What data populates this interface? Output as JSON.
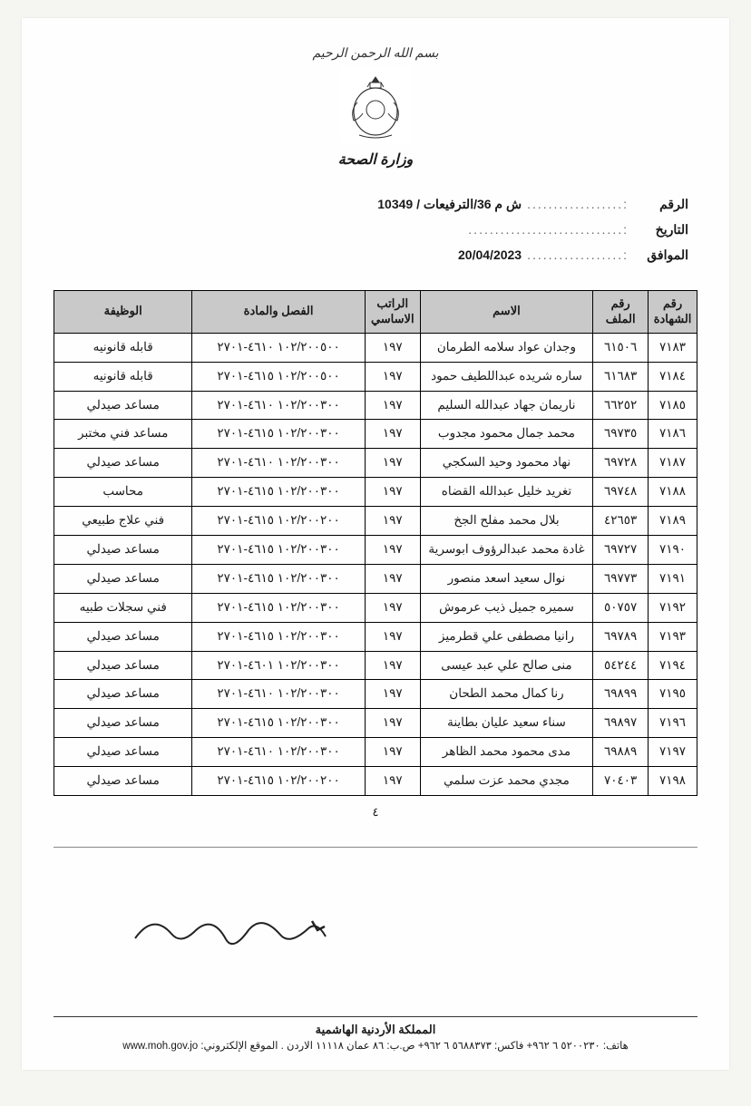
{
  "header": {
    "bismillah": "بسم الله الرحمن الرحيم",
    "ministry": "وزارة الصحة"
  },
  "meta": {
    "ref_label": "الرقم",
    "ref_value": "ش م 36/الترفيعات / 10349",
    "date_label": "التاريخ",
    "date_value": "",
    "corresponding_label": "الموافق",
    "corresponding_value": "20/04/2023"
  },
  "table": {
    "headers": {
      "cert_no": "رقم الشهادة",
      "file_no": "رقم الملف",
      "name": "الاسم",
      "base_salary": "الراتب الاساسي",
      "chapter_item": "الفصل والمادة",
      "job": "الوظيفة"
    },
    "rows": [
      {
        "cert": "٧١٨٣",
        "file": "٦١٥٠٦",
        "name": "وجدان عواد سلامه الطرمان",
        "sal": "١٩٧",
        "chap": "١٠٢/٢٠٠٥٠٠ ٤٦١٠-٢٧٠١",
        "job": "قابله قانونيه"
      },
      {
        "cert": "٧١٨٤",
        "file": "٦١٦٨٣",
        "name": "ساره شريده عبداللطيف حمود",
        "sal": "١٩٧",
        "chap": "١٠٢/٢٠٠٥٠٠ ٤٦١٥-٢٧٠١",
        "job": "قابله قانونيه"
      },
      {
        "cert": "٧١٨٥",
        "file": "٦٦٢٥٢",
        "name": "ناريمان جهاد عبدالله السليم",
        "sal": "١٩٧",
        "chap": "١٠٢/٢٠٠٣٠٠ ٤٦١٠-٢٧٠١",
        "job": "مساعد صيدلي"
      },
      {
        "cert": "٧١٨٦",
        "file": "٦٩٧٣٥",
        "name": "محمد جمال محمود مجدوب",
        "sal": "١٩٧",
        "chap": "١٠٢/٢٠٠٣٠٠ ٤٦١٥-٢٧٠١",
        "job": "مساعد فني مختبر"
      },
      {
        "cert": "٧١٨٧",
        "file": "٦٩٧٢٨",
        "name": "نهاد محمود وحيد السكجي",
        "sal": "١٩٧",
        "chap": "١٠٢/٢٠٠٣٠٠ ٤٦١٠-٢٧٠١",
        "job": "مساعد صيدلي"
      },
      {
        "cert": "٧١٨٨",
        "file": "٦٩٧٤٨",
        "name": "تغريد خليل عبدالله القضاه",
        "sal": "١٩٧",
        "chap": "١٠٢/٢٠٠٣٠٠ ٤٦١٥-٢٧٠١",
        "job": "محاسب"
      },
      {
        "cert": "٧١٨٩",
        "file": "٤٢٦٥٣",
        "name": "بلال محمد مفلح الجخ",
        "sal": "١٩٧",
        "chap": "١٠٢/٢٠٠٢٠٠ ٤٦١٥-٢٧٠١",
        "job": "فني علاج طبيعي"
      },
      {
        "cert": "٧١٩٠",
        "file": "٦٩٧٢٧",
        "name": "غادة محمد عبدالرؤوف ابوسرية",
        "sal": "١٩٧",
        "chap": "١٠٢/٢٠٠٣٠٠ ٤٦١٥-٢٧٠١",
        "job": "مساعد صيدلي"
      },
      {
        "cert": "٧١٩١",
        "file": "٦٩٧٧٣",
        "name": "نوال سعيد اسعد منصور",
        "sal": "١٩٧",
        "chap": "١٠٢/٢٠٠٣٠٠ ٤٦١٥-٢٧٠١",
        "job": "مساعد صيدلي"
      },
      {
        "cert": "٧١٩٢",
        "file": "٥٠٧٥٧",
        "name": "سميره جميل ذيب عرموش",
        "sal": "١٩٧",
        "chap": "١٠٢/٢٠٠٣٠٠ ٤٦١٥-٢٧٠١",
        "job": "فني سجلات طبيه"
      },
      {
        "cert": "٧١٩٣",
        "file": "٦٩٧٨٩",
        "name": "رانيا مصطفى علي قطرميز",
        "sal": "١٩٧",
        "chap": "١٠٢/٢٠٠٣٠٠ ٤٦١٥-٢٧٠١",
        "job": "مساعد صيدلي"
      },
      {
        "cert": "٧١٩٤",
        "file": "٥٤٢٤٤",
        "name": "منى صالح علي عبد عيسى",
        "sal": "١٩٧",
        "chap": "١٠٢/٢٠٠٣٠٠ ٤٦٠١-٢٧٠١",
        "job": "مساعد صيدلي"
      },
      {
        "cert": "٧١٩٥",
        "file": "٦٩٨٩٩",
        "name": "رنا كمال محمد الطحان",
        "sal": "١٩٧",
        "chap": "١٠٢/٢٠٠٣٠٠ ٤٦١٠-٢٧٠١",
        "job": "مساعد صيدلي"
      },
      {
        "cert": "٧١٩٦",
        "file": "٦٩٨٩٧",
        "name": "سناء سعيد عليان بطاينة",
        "sal": "١٩٧",
        "chap": "١٠٢/٢٠٠٣٠٠ ٤٦١٥-٢٧٠١",
        "job": "مساعد صيدلي"
      },
      {
        "cert": "٧١٩٧",
        "file": "٦٩٨٨٩",
        "name": "مدى محمود محمد الظاهر",
        "sal": "١٩٧",
        "chap": "١٠٢/٢٠٠٣٠٠ ٤٦١٠-٢٧٠١",
        "job": "مساعد صيدلي"
      },
      {
        "cert": "٧١٩٨",
        "file": "٧٠٤٠٣",
        "name": "مجدي محمد عزت سلمي",
        "sal": "١٩٧",
        "chap": "١٠٢/٢٠٠٢٠٠ ٤٦١٥-٢٧٠١",
        "job": "مساعد صيدلي"
      }
    ]
  },
  "page_number": "٤",
  "footer": {
    "line1": "المملكة الأردنية الهاشمية",
    "line2": "هاتف: ٥٢٠٠٢٣٠ ٦ ٩٦٢+ فاكس: ٥٦٨٨٣٧٣ ٦ ٩٦٢+ ص.ب: ٨٦ عمان ١١١١٨ الاردن . الموقع الإلكتروني: www.moh.gov.jo"
  }
}
